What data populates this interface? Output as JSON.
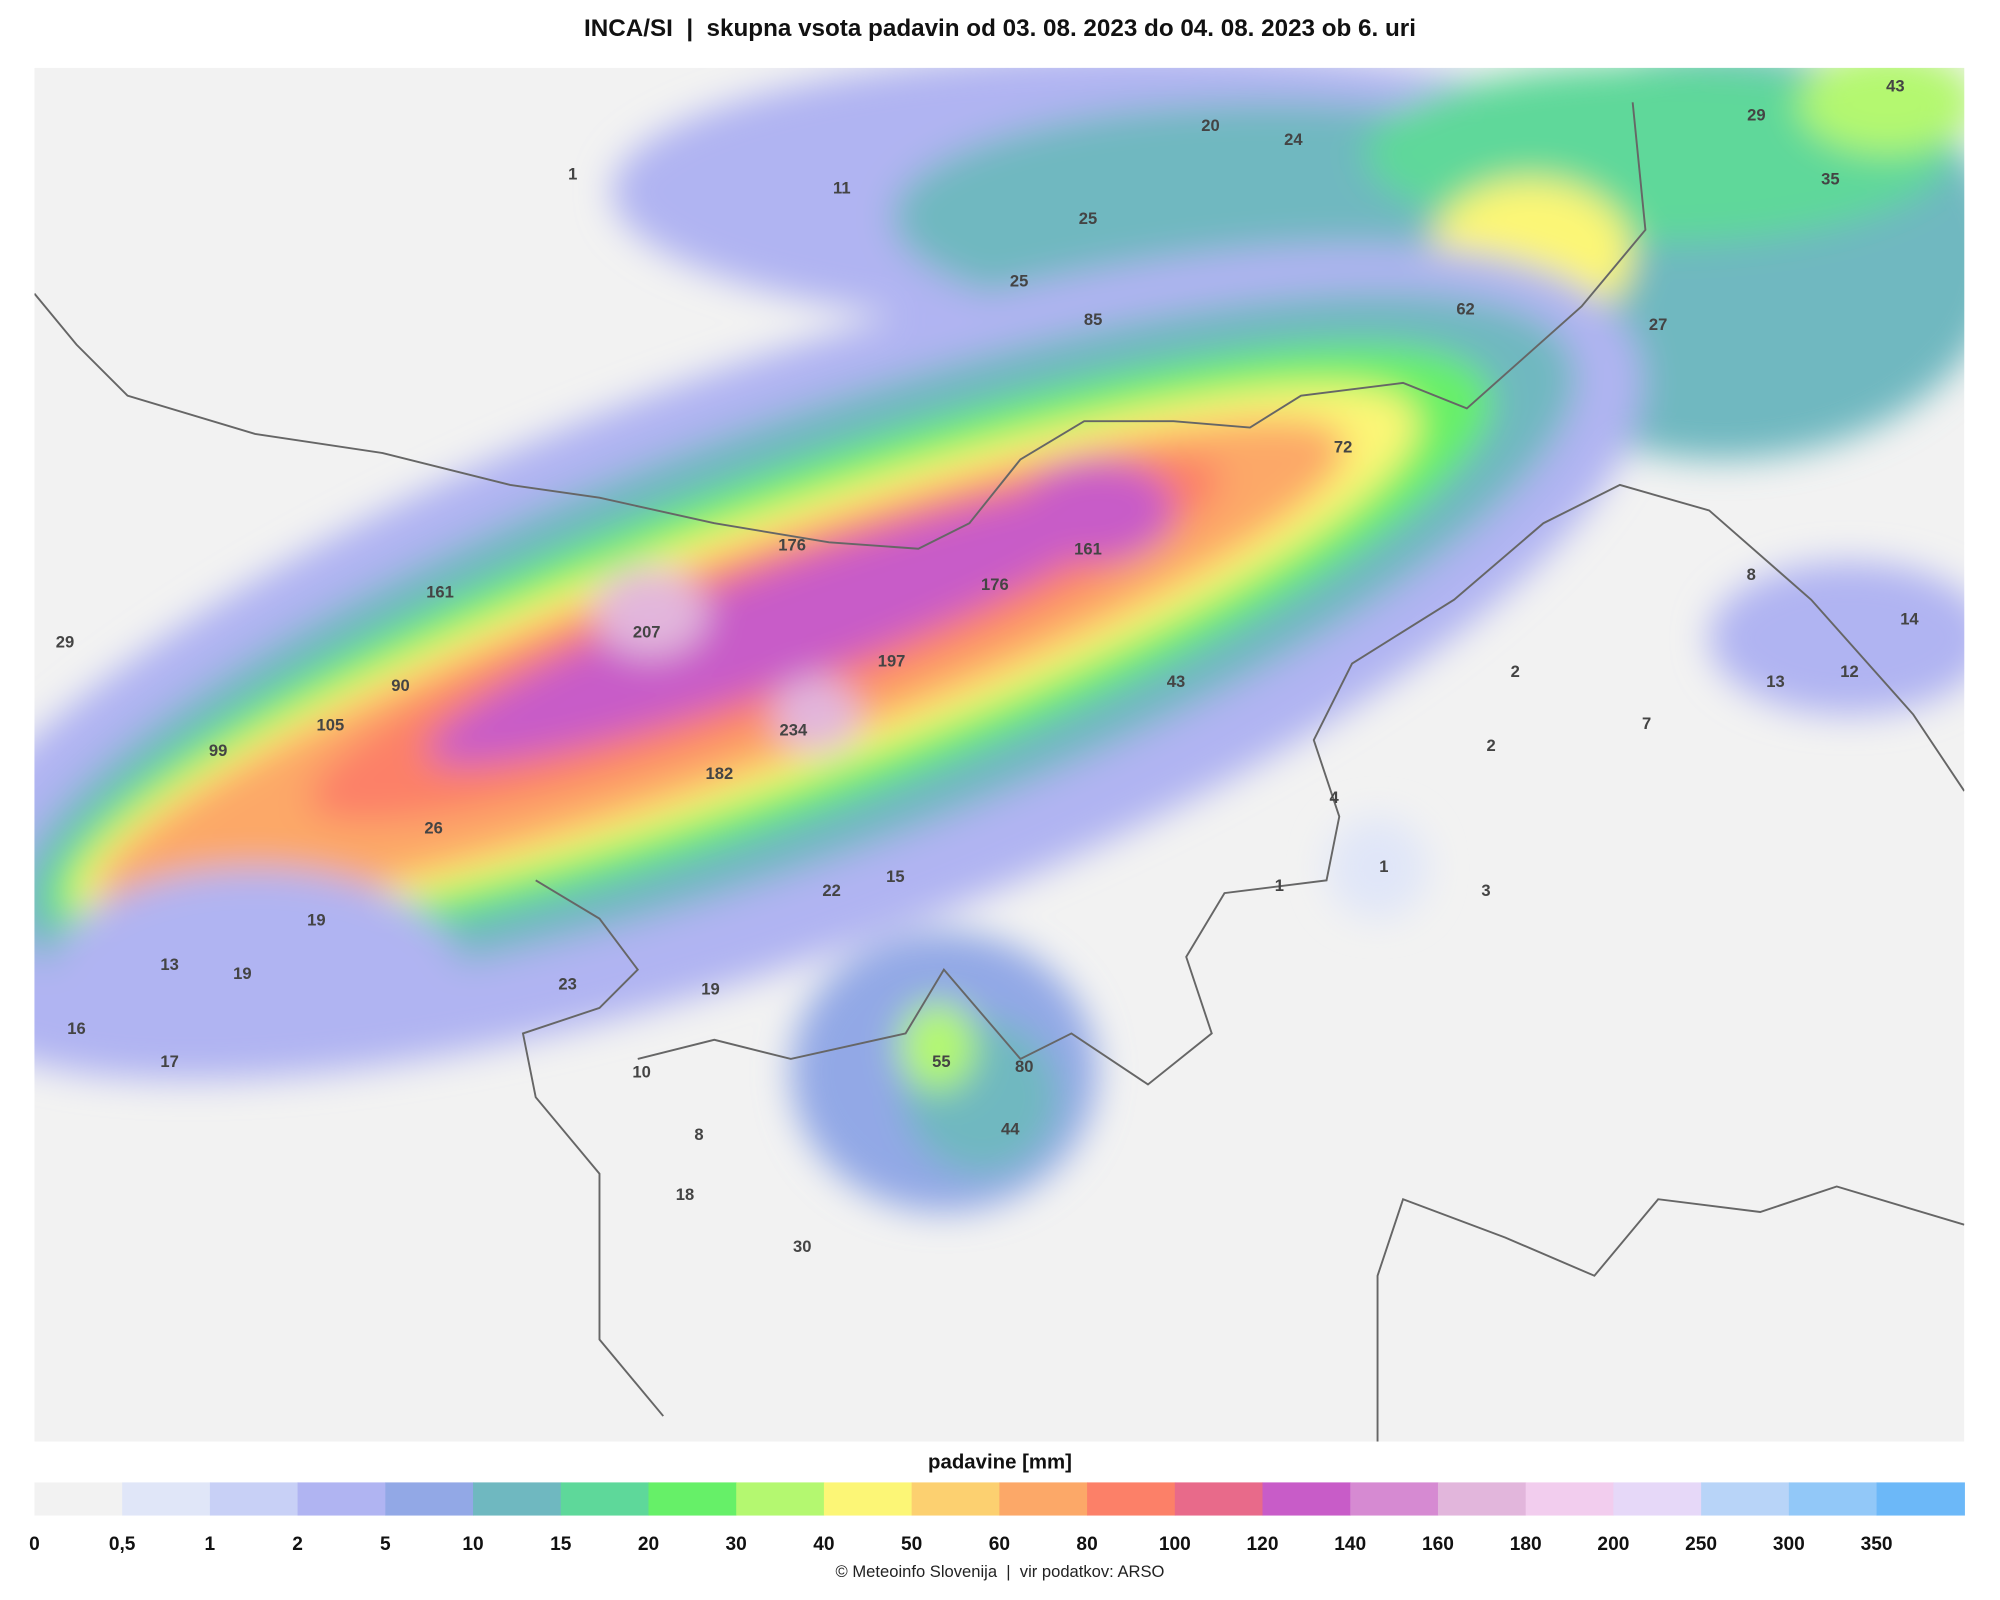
{
  "title": "INCA/SI  |  skupna vsota padavin od 03. 08. 2023 do 04. 08. 2023 ob 6. uri",
  "map_labels": [
    "1",
    "11",
    "20",
    "24",
    "25",
    "25",
    "85",
    "43",
    "29",
    "35",
    "62",
    "27",
    "72",
    "176",
    "161",
    "176",
    "161",
    "207",
    "197",
    "29",
    "90",
    "43",
    "105",
    "99",
    "234",
    "182",
    "2",
    "2",
    "7",
    "13",
    "12",
    "14",
    "8",
    "4",
    "1",
    "1",
    "3",
    "26",
    "22",
    "15",
    "19",
    "13",
    "19",
    "23",
    "19",
    "16",
    "17",
    "10",
    "55",
    "80",
    "44",
    "8",
    "18",
    "30"
  ],
  "legend": {
    "title": "padavine [mm]",
    "ticks": [
      "0",
      "0,5",
      "1",
      "2",
      "5",
      "10",
      "15",
      "20",
      "30",
      "40",
      "50",
      "60",
      "80",
      "100",
      "120",
      "140",
      "160",
      "180",
      "200",
      "250",
      "300",
      "350"
    ],
    "colors": [
      "#f2f2f2",
      "#e0e6f8",
      "#c8d0f6",
      "#b0b4f2",
      "#92a8e6",
      "#6fb8c0",
      "#5ed89a",
      "#66f068",
      "#b4f870",
      "#fcf676",
      "#fcd070",
      "#fca868",
      "#fc8068",
      "#e86a8a",
      "#c85cc8",
      "#d68ad2",
      "#e2b6dc",
      "#f2cdee",
      "#e6d8f8",
      "#b8d4f8",
      "#92c8f8",
      "#6cb8f8"
    ]
  },
  "footer": "© Meteoinfo Slovenija  |  vir podatkov: ARSO"
}
